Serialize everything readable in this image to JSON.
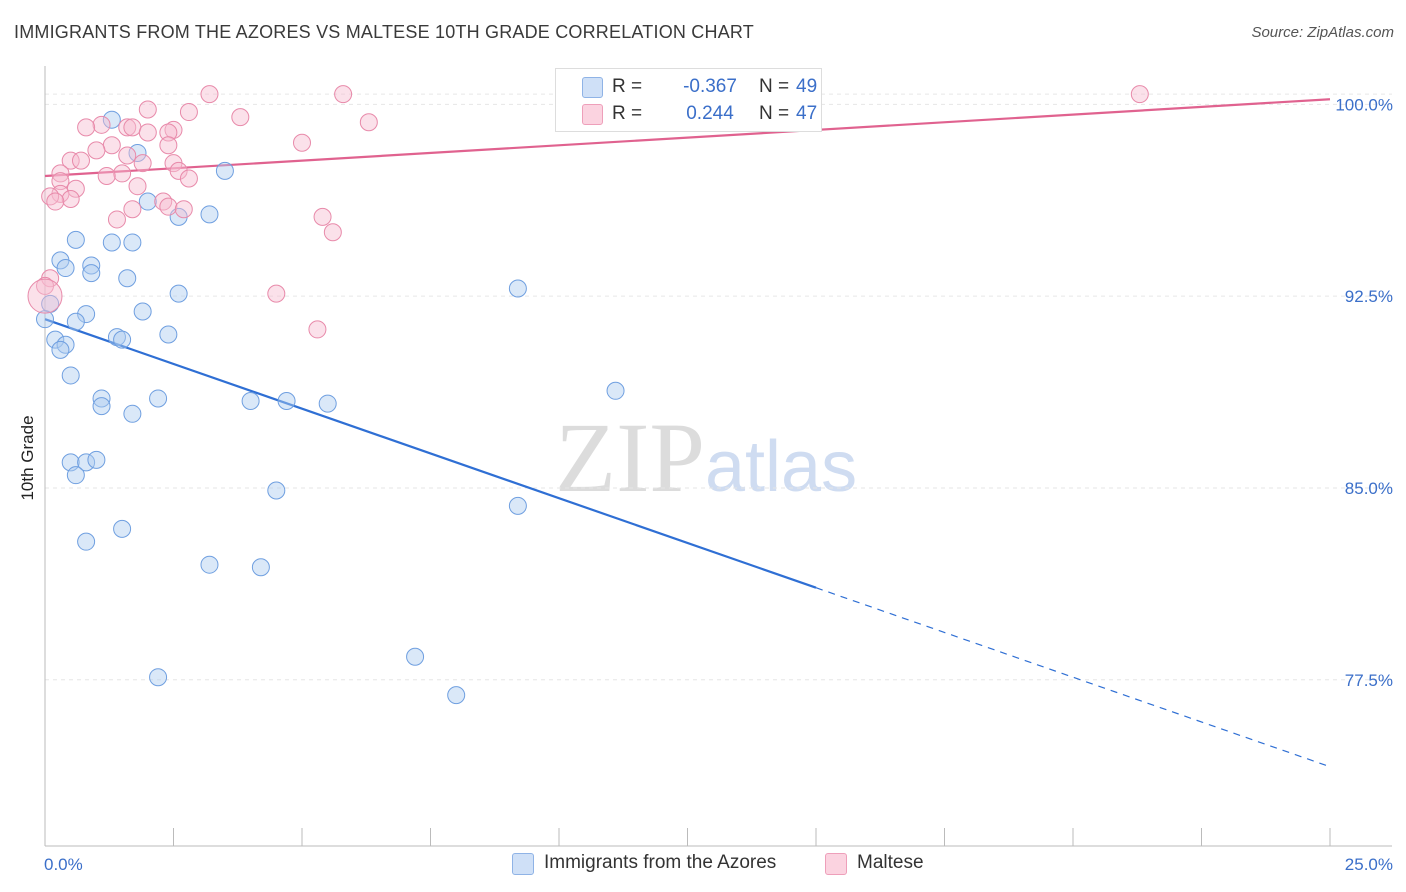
{
  "title": "IMMIGRANTS FROM THE AZORES VS MALTESE 10TH GRADE CORRELATION CHART",
  "source": "Source: ZipAtlas.com",
  "watermark": {
    "zip": "ZIP",
    "atlas": "atlas"
  },
  "legend": {
    "rows": [
      {
        "r_label": "R =",
        "r_value": "-0.367",
        "n_label": "N =",
        "n_value": "49",
        "color": "#aecbf0"
      },
      {
        "r_label": "R =",
        "r_value": "0.244",
        "n_label": "N =",
        "n_value": "47",
        "color": "#f7bcd0"
      }
    ]
  },
  "bottom_legend": [
    {
      "label": "Immigrants from the Azores",
      "color": "#aecbf0"
    },
    {
      "label": "Maltese",
      "color": "#f7bcd0"
    }
  ],
  "chart_data": {
    "type": "scatter",
    "title": "IMMIGRANTS FROM THE AZORES VS MALTESE 10TH GRADE CORRELATION CHART",
    "xlabel": "",
    "ylabel": "10th Grade",
    "xlim": [
      0,
      25
    ],
    "ylim": [
      71.0,
      101.5
    ],
    "x_tick_labels": [
      {
        "value": 0,
        "label": "0.0%"
      },
      {
        "value": 25,
        "label": "25.0%"
      }
    ],
    "y_tick_labels": [
      {
        "value": 100,
        "label": "100.0%"
      },
      {
        "value": 92.5,
        "label": "92.5%"
      },
      {
        "value": 85,
        "label": "85.0%"
      },
      {
        "value": 77.5,
        "label": "77.5%"
      }
    ],
    "grid": true,
    "legend_position": "top-center",
    "series": [
      {
        "name": "Immigrants from the Azores",
        "color": "#6f9fe0",
        "fill": "#aecbf0",
        "points": [
          [
            1.3,
            99.4
          ],
          [
            1.8,
            98.1
          ],
          [
            3.5,
            97.4
          ],
          [
            2.0,
            96.2
          ],
          [
            2.6,
            95.6
          ],
          [
            3.2,
            95.7
          ],
          [
            0.6,
            94.7
          ],
          [
            1.3,
            94.6
          ],
          [
            1.7,
            94.6
          ],
          [
            0.3,
            93.9
          ],
          [
            0.4,
            93.6
          ],
          [
            0.9,
            93.7
          ],
          [
            0.9,
            93.4
          ],
          [
            1.6,
            93.2
          ],
          [
            2.6,
            92.6
          ],
          [
            9.2,
            92.8
          ],
          [
            0.1,
            92.2
          ],
          [
            0.8,
            91.8
          ],
          [
            1.9,
            91.9
          ],
          [
            0.0,
            91.6
          ],
          [
            0.6,
            91.5
          ],
          [
            2.4,
            91.0
          ],
          [
            0.2,
            90.8
          ],
          [
            0.4,
            90.6
          ],
          [
            0.3,
            90.4
          ],
          [
            1.4,
            90.9
          ],
          [
            1.5,
            90.8
          ],
          [
            0.5,
            89.4
          ],
          [
            1.1,
            88.5
          ],
          [
            1.1,
            88.2
          ],
          [
            2.2,
            88.5
          ],
          [
            4.0,
            88.4
          ],
          [
            4.7,
            88.4
          ],
          [
            5.5,
            88.3
          ],
          [
            11.1,
            88.8
          ],
          [
            1.7,
            87.9
          ],
          [
            0.5,
            86.0
          ],
          [
            0.8,
            86.0
          ],
          [
            1.0,
            86.1
          ],
          [
            0.6,
            85.5
          ],
          [
            4.5,
            84.9
          ],
          [
            9.2,
            84.3
          ],
          [
            1.5,
            83.4
          ],
          [
            0.8,
            82.9
          ],
          [
            3.2,
            82.0
          ],
          [
            4.2,
            81.9
          ],
          [
            7.2,
            78.4
          ],
          [
            2.2,
            77.6
          ],
          [
            8.0,
            76.9
          ]
        ]
      },
      {
        "name": "Maltese",
        "color": "#e88aaa",
        "fill": "#f7bcd0",
        "points": [
          [
            3.2,
            100.4
          ],
          [
            5.8,
            100.4
          ],
          [
            21.3,
            100.4
          ],
          [
            2.0,
            99.8
          ],
          [
            2.8,
            99.7
          ],
          [
            3.8,
            99.5
          ],
          [
            6.3,
            99.3
          ],
          [
            1.1,
            99.2
          ],
          [
            0.8,
            99.1
          ],
          [
            1.6,
            99.1
          ],
          [
            1.7,
            99.1
          ],
          [
            2.5,
            99.0
          ],
          [
            2.0,
            98.9
          ],
          [
            2.4,
            98.9
          ],
          [
            5.0,
            98.5
          ],
          [
            1.3,
            98.4
          ],
          [
            2.4,
            98.4
          ],
          [
            1.0,
            98.2
          ],
          [
            1.6,
            98.0
          ],
          [
            0.5,
            97.8
          ],
          [
            0.7,
            97.8
          ],
          [
            1.9,
            97.7
          ],
          [
            2.5,
            97.7
          ],
          [
            2.6,
            97.4
          ],
          [
            1.5,
            97.3
          ],
          [
            0.3,
            97.3
          ],
          [
            1.2,
            97.2
          ],
          [
            2.8,
            97.1
          ],
          [
            0.3,
            97.0
          ],
          [
            1.8,
            96.8
          ],
          [
            0.6,
            96.7
          ],
          [
            0.3,
            96.5
          ],
          [
            0.1,
            96.4
          ],
          [
            0.5,
            96.3
          ],
          [
            0.2,
            96.2
          ],
          [
            2.3,
            96.2
          ],
          [
            2.4,
            96.0
          ],
          [
            1.7,
            95.9
          ],
          [
            2.7,
            95.9
          ],
          [
            5.4,
            95.6
          ],
          [
            1.4,
            95.5
          ],
          [
            5.6,
            95.0
          ],
          [
            0.1,
            93.2
          ],
          [
            0.0,
            92.9
          ],
          [
            4.5,
            92.6
          ],
          [
            5.3,
            91.2
          ],
          [
            0.0,
            92.5
          ]
        ]
      }
    ],
    "trend_lines": [
      {
        "series": "Immigrants from the Azores",
        "x0": 0.0,
        "y0": 91.6,
        "x_solid_end": 15.0,
        "x1": 25.0,
        "y1": 74.1
      },
      {
        "series": "Maltese",
        "x0": 0.0,
        "y0": 97.2,
        "x1": 25.0,
        "y1": 100.2
      }
    ]
  }
}
